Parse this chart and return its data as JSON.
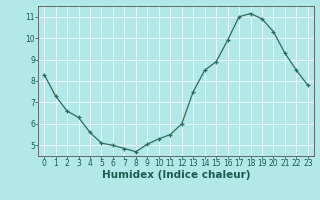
{
  "x": [
    0,
    1,
    2,
    3,
    4,
    5,
    6,
    7,
    8,
    9,
    10,
    11,
    12,
    13,
    14,
    15,
    16,
    17,
    18,
    19,
    20,
    21,
    22,
    23
  ],
  "y": [
    8.3,
    7.3,
    6.6,
    6.3,
    5.6,
    5.1,
    5.0,
    4.85,
    4.7,
    5.05,
    5.3,
    5.5,
    6.0,
    7.5,
    8.5,
    8.9,
    9.9,
    11.0,
    11.15,
    10.9,
    10.3,
    9.3,
    8.5,
    7.8
  ],
  "xlabel": "Humidex (Indice chaleur)",
  "ylim": [
    4.5,
    11.5
  ],
  "xlim": [
    -0.5,
    23.5
  ],
  "yticks": [
    5,
    6,
    7,
    8,
    9,
    10,
    11
  ],
  "xticks": [
    0,
    1,
    2,
    3,
    4,
    5,
    6,
    7,
    8,
    9,
    10,
    11,
    12,
    13,
    14,
    15,
    16,
    17,
    18,
    19,
    20,
    21,
    22,
    23
  ],
  "line_color": "#2d6b5e",
  "marker": "+",
  "bg_color": "#b3e8e8",
  "grid_color": "#e8f8f8",
  "axis_color": "#555555",
  "tick_label_color": "#1a5c50",
  "xlabel_color": "#1a5c50",
  "tick_fontsize": 5.5,
  "xlabel_fontsize": 7.5,
  "xlabel_fontweight": "bold"
}
